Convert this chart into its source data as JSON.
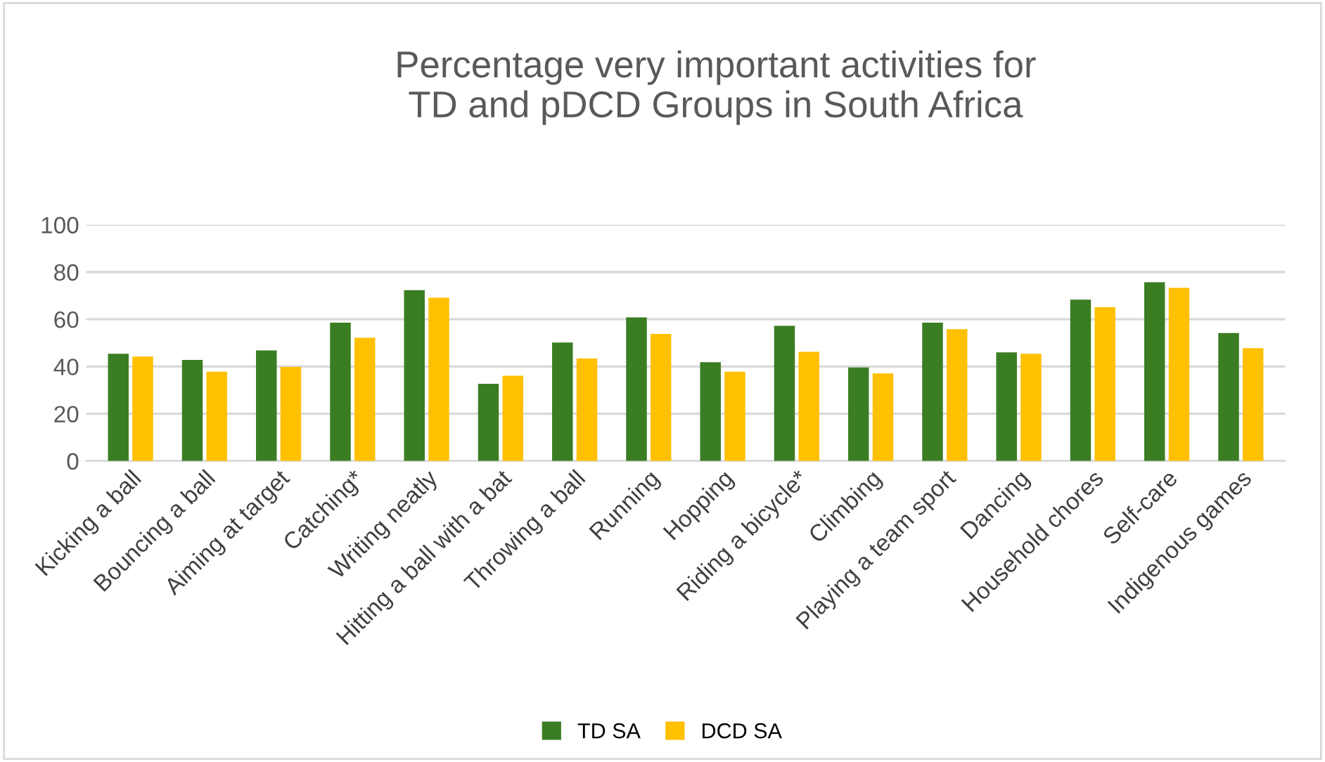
{
  "chart_data": {
    "type": "bar",
    "title": "Percentage very important activities for\nTD and pDCD Groups in South Africa",
    "categories": [
      "Kicking a ball",
      "Bouncing a ball",
      "Aiming at target",
      "Catching*",
      "Writing neatly",
      "Hitting a ball with a bat",
      "Throwing a ball",
      "Running",
      "Hopping",
      "Riding a bicycle*",
      "Climbing",
      "Playing a team sport",
      "Dancing",
      "Household chores",
      "Self-care",
      "Indigenous games"
    ],
    "series": [
      {
        "name": "TD SA",
        "color": "#3b7d23",
        "values": [
          45.4,
          42.8,
          46.8,
          58.6,
          72.3,
          32.7,
          50.2,
          60.8,
          41.8,
          57.2,
          39.6,
          58.6,
          46.0,
          68.3,
          75.7,
          54.2
        ]
      },
      {
        "name": "DCD SA",
        "color": "#ffc000",
        "values": [
          44.2,
          37.8,
          39.8,
          52.2,
          69.1,
          36.1,
          43.4,
          53.8,
          37.8,
          46.2,
          37.1,
          55.8,
          45.4,
          65.1,
          73.3,
          47.8
        ]
      }
    ],
    "ylim": [
      0,
      100
    ],
    "yticks": [
      0,
      20,
      40,
      60,
      80,
      100
    ],
    "grid": "y",
    "legend": "bottom"
  }
}
